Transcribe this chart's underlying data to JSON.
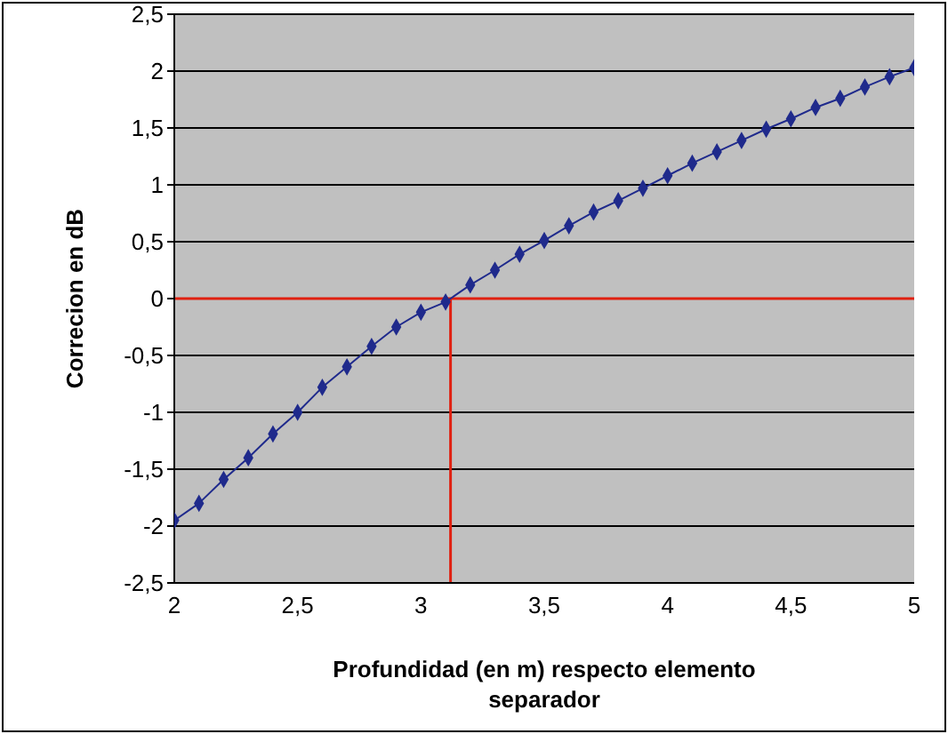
{
  "chart_data": {
    "type": "line",
    "xlabel": "Profundidad (en m) respecto elemento separador",
    "ylabel": "Correcion en dB",
    "x": [
      2,
      2.1,
      2.2,
      2.3,
      2.4,
      2.5,
      2.6,
      2.7,
      2.8,
      2.9,
      3,
      3.1,
      3.2,
      3.3,
      3.4,
      3.5,
      3.6,
      3.7,
      3.8,
      3.9,
      4,
      4.1,
      4.2,
      4.3,
      4.4,
      4.5,
      4.6,
      4.7,
      4.8,
      4.9,
      5
    ],
    "series": [
      {
        "color": "#1f2a8c",
        "values": [
          -1.95,
          -1.8,
          -1.59,
          -1.4,
          -1.19,
          -1.0,
          -0.78,
          -0.6,
          -0.42,
          -0.25,
          -0.12,
          -0.03,
          0.12,
          0.25,
          0.39,
          0.51,
          0.64,
          0.76,
          0.86,
          0.97,
          1.08,
          1.19,
          1.29,
          1.39,
          1.49,
          1.58,
          1.68,
          1.76,
          1.86,
          1.95,
          2.03
        ]
      }
    ],
    "xlim": [
      2,
      5
    ],
    "xticks": [
      2,
      {
        "value": 2.5,
        "label": "2,5"
      },
      3,
      {
        "value": 3.5,
        "label": "3,5"
      },
      4,
      {
        "value": 4.5,
        "label": "4,5"
      },
      5
    ],
    "ylim": [
      -2.5,
      2.5
    ],
    "yticks": [
      {
        "value": -2.5,
        "label": "-2,5"
      },
      -2,
      {
        "value": -1.5,
        "label": "-1,5"
      },
      -1,
      {
        "value": -0.5,
        "label": "-0,5"
      },
      0,
      {
        "value": 0.5,
        "label": "0,5"
      },
      1,
      {
        "value": 1.5,
        "label": "1,5"
      },
      2,
      {
        "value": 2.5,
        "label": "2,5"
      }
    ],
    "ref_lines": [
      {
        "axis": "y",
        "value": 0,
        "color": "#e02010"
      },
      {
        "axis": "x",
        "value": 3.12,
        "color": "#e02010"
      }
    ],
    "grid": "y",
    "marker": "diamond",
    "line_style": "solid",
    "legend": false
  }
}
